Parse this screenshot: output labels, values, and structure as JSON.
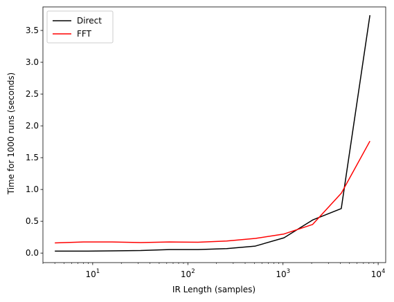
{
  "chart_data": {
    "type": "line",
    "title": "",
    "xlabel": "IR Length (samples)",
    "ylabel": "Time for 1000 runs (seconds)",
    "xscale": "log",
    "xlim": [
      3,
      12000
    ],
    "ylim": [
      -0.15,
      3.87
    ],
    "x_ticks": [
      {
        "value": 10,
        "base": "10",
        "exp": "1"
      },
      {
        "value": 100,
        "base": "10",
        "exp": "2"
      },
      {
        "value": 1000,
        "base": "10",
        "exp": "3"
      },
      {
        "value": 10000,
        "base": "10",
        "exp": "4"
      }
    ],
    "y_ticks": [
      {
        "value": 0.0,
        "label": "0.0"
      },
      {
        "value": 0.5,
        "label": "0.5"
      },
      {
        "value": 1.0,
        "label": "1.0"
      },
      {
        "value": 1.5,
        "label": "1.5"
      },
      {
        "value": 2.0,
        "label": "2.0"
      },
      {
        "value": 2.5,
        "label": "2.5"
      },
      {
        "value": 3.0,
        "label": "3.0"
      },
      {
        "value": 3.5,
        "label": "3.5"
      }
    ],
    "grid": false,
    "legend_position": "top-left",
    "x": [
      4,
      8,
      16,
      32,
      64,
      128,
      256,
      512,
      1024,
      2048,
      4096,
      8192
    ],
    "series": [
      {
        "name": "Direct",
        "color": "#000000",
        "values": [
          0.03,
          0.03,
          0.035,
          0.04,
          0.055,
          0.055,
          0.07,
          0.11,
          0.24,
          0.52,
          0.7,
          3.74
        ]
      },
      {
        "name": "FFT",
        "color": "#ff0000",
        "values": [
          0.16,
          0.175,
          0.175,
          0.165,
          0.175,
          0.17,
          0.19,
          0.23,
          0.3,
          0.45,
          0.94,
          1.76
        ]
      }
    ]
  }
}
